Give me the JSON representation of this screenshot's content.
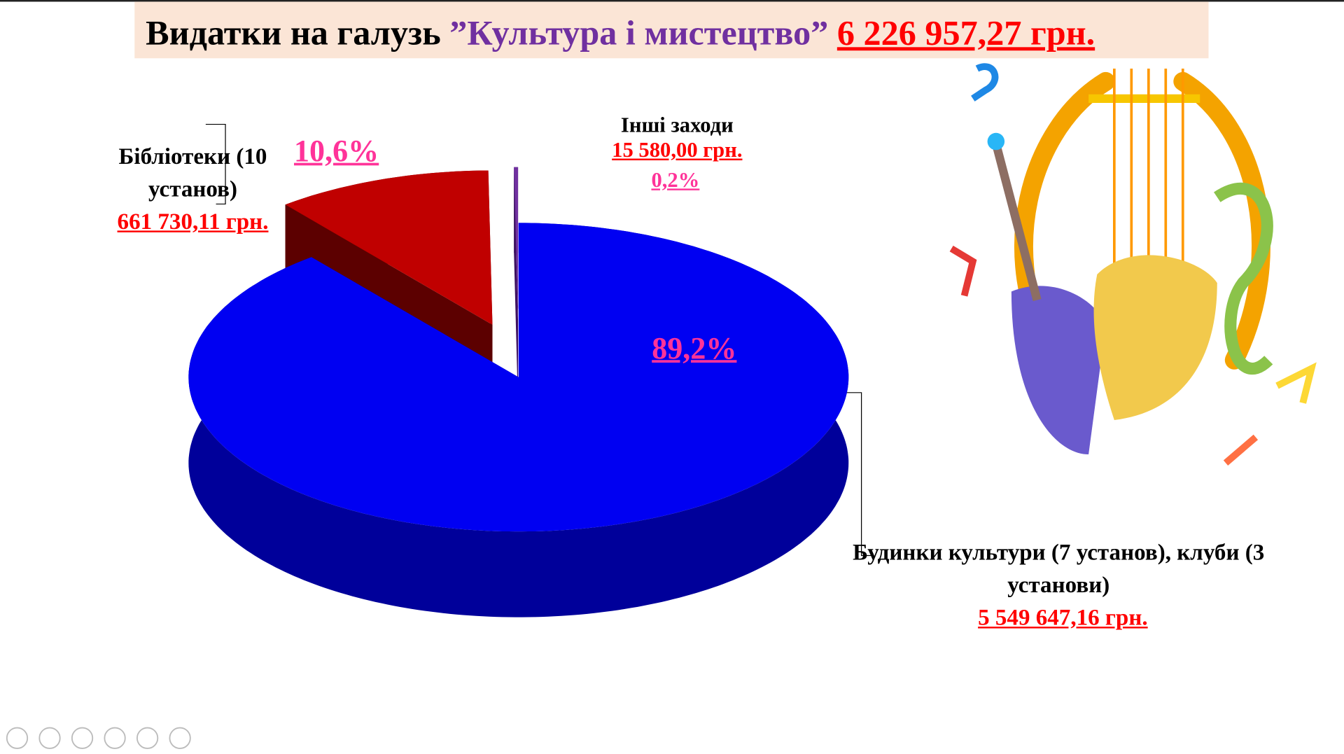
{
  "chart_data": {
    "type": "pie",
    "title": "Видатки на галузь",
    "title_topic": "”Культура і мистецтво”",
    "title_total": "6 226 957,27 грн.",
    "categories": [
      "Будинки культури (7 установ), клуби (3 установи)",
      "Бібліотеки (10 установ)",
      "Інші заходи"
    ],
    "values": [
      89.2,
      10.6,
      0.2
    ],
    "value_labels": [
      "89,2%",
      "10,6%",
      "0,2%"
    ],
    "amount_labels": [
      "5 549 647,16 грн.",
      "661 730,11 грн.",
      "15 580,00 грн."
    ],
    "colors": [
      "#0000f2",
      "#c00000",
      "#7030a0"
    ],
    "side_colors": [
      "#00009a",
      "#5c0000",
      "#3c1060"
    ],
    "exploded": [
      false,
      true,
      true
    ]
  }
}
